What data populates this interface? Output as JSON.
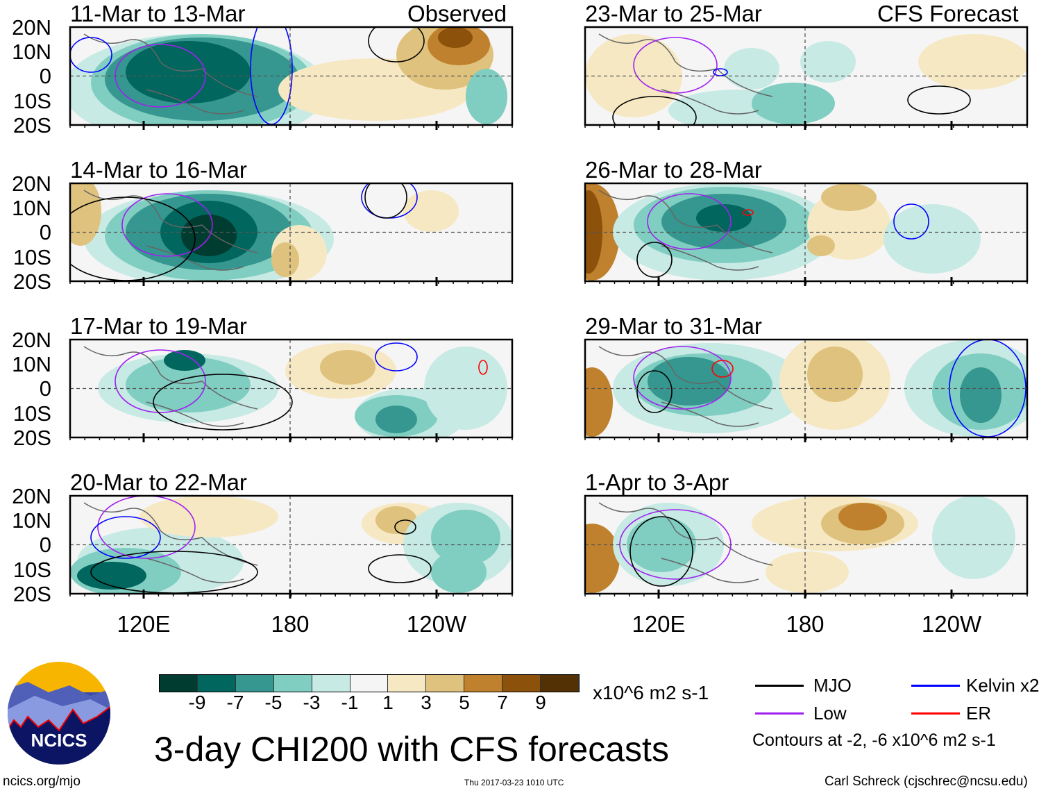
{
  "panels": {
    "left": [
      {
        "title": "11-Mar to 13-Mar",
        "tag": "Observed"
      },
      {
        "title": "14-Mar to 16-Mar"
      },
      {
        "title": "17-Mar to 19-Mar"
      },
      {
        "title": "20-Mar to 22-Mar"
      }
    ],
    "right": [
      {
        "title": "23-Mar to 25-Mar",
        "tag": "CFS Forecast"
      },
      {
        "title": "26-Mar to 28-Mar"
      },
      {
        "title": "29-Mar to 31-Mar"
      },
      {
        "title": "1-Apr to 3-Apr"
      }
    ]
  },
  "lat_labels": [
    "20N",
    "10N",
    "0",
    "10S",
    "20S"
  ],
  "lon_labels": [
    "120E",
    "180",
    "120W"
  ],
  "colorbar": {
    "colors": [
      "#003c30",
      "#01665e",
      "#35978f",
      "#80cdc1",
      "#c7eae5",
      "#f5f5f5",
      "#f6e8c3",
      "#dfc27d",
      "#bf812d",
      "#8c510a",
      "#543005"
    ],
    "labels": [
      "-9",
      "-7",
      "-5",
      "-3",
      "-1",
      "1",
      "3",
      "5",
      "7",
      "9"
    ],
    "units": "x10^6 m2 s-1"
  },
  "legend": {
    "items": [
      {
        "label": "MJO",
        "color": "#000000"
      },
      {
        "label": "Kelvin x2",
        "color": "#0000ff"
      },
      {
        "label": "Low",
        "color": "#a020f0"
      },
      {
        "label": "ER",
        "color": "#ff0000"
      }
    ],
    "note": "Contours at -2, -6 x10^6 m2 s-1"
  },
  "title": "3-day CHI200 with CFS forecasts",
  "logo_text": "NCICS",
  "footer": {
    "url": "ncics.org/mjo",
    "timestamp": "Thu 2017-03-23 1010 UTC",
    "author": "Carl Schreck (cjschrec@ncsu.edu)"
  }
}
